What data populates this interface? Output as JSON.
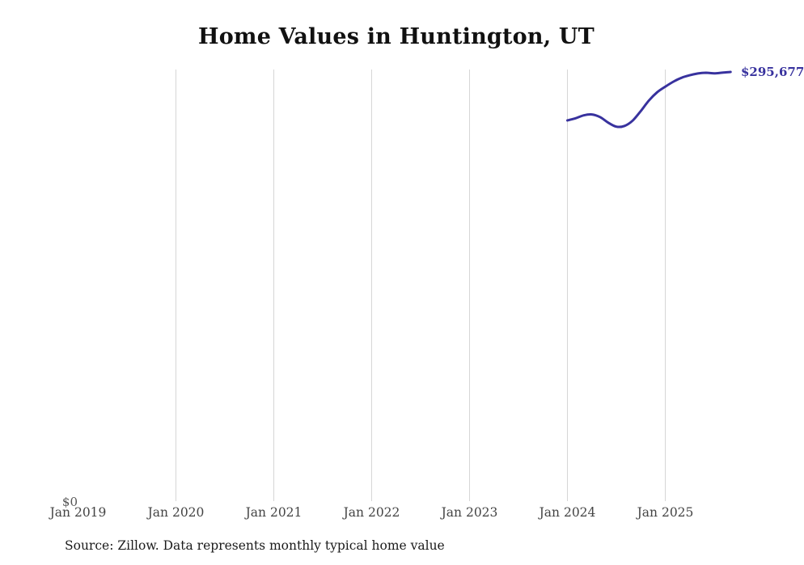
{
  "chart_data": {
    "type": "line",
    "title": "Home Values in Huntington, UT",
    "x_ticks": [
      "Jan 2019",
      "Jan 2020",
      "Jan 2021",
      "Jan 2022",
      "Jan 2023",
      "Jan 2024",
      "Jan 2025"
    ],
    "y_axis": {
      "min_label": "$0",
      "min": 0,
      "max_approx": 297000
    },
    "grid": "vertical-only",
    "legend": "none",
    "series": [
      {
        "name": "Monthly typical home value",
        "months": [
          "Jan 2024",
          "Feb 2024",
          "Mar 2024",
          "Apr 2024",
          "May 2024",
          "Jun 2024",
          "Jul 2024",
          "Aug 2024",
          "Sep 2024",
          "Oct 2024",
          "Nov 2024",
          "Dec 2024",
          "Jan 2025",
          "Feb 2025",
          "Mar 2025",
          "Apr 2025",
          "May 2025",
          "Jun 2025",
          "Jul 2025",
          "Aug 2025",
          "Sep 2025"
        ],
        "start_month_index_from_jan2019": 60,
        "values": [
          262400,
          263900,
          265900,
          266500,
          264700,
          260900,
          258100,
          258600,
          262300,
          268900,
          276100,
          281700,
          285600,
          289000,
          291700,
          293400,
          294600,
          295100,
          294700,
          295200,
          295677
        ]
      }
    ],
    "end_label": "$295,677",
    "colors": {
      "line": "#38329e",
      "gridline": "#d6d6d6",
      "tick_text": "#444444",
      "title_text": "#111111"
    },
    "source": "Source: Zillow. Data represents monthly typical home value"
  }
}
